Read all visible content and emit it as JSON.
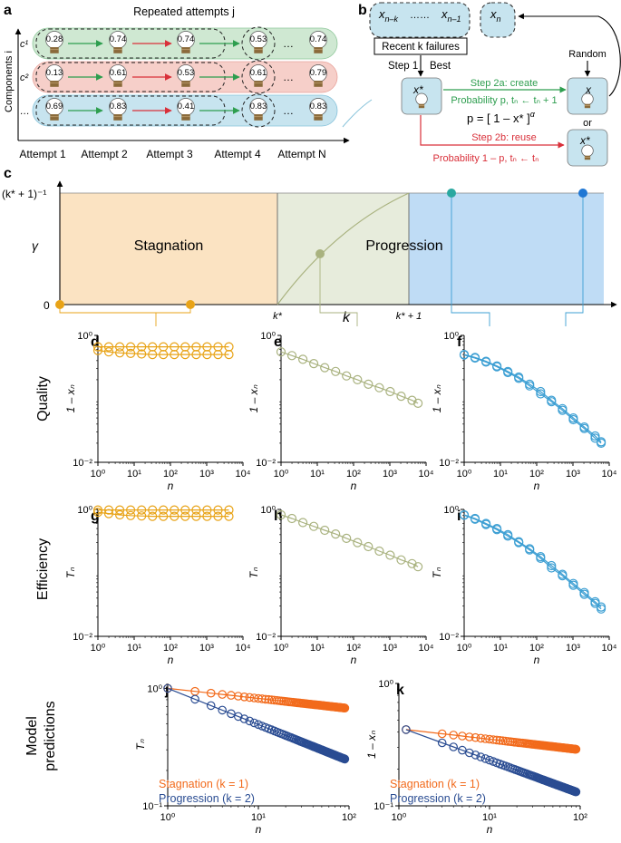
{
  "panel_a": {
    "letter": "a",
    "header": "Repeated attempts j",
    "y_axis": "Components i",
    "row_labels": [
      "c¹",
      "c²",
      "…"
    ],
    "row_colors": [
      "#cfe8d2",
      "#f6cfc9",
      "#c7e4ef"
    ],
    "row_edge_colors": [
      "#8ec79a",
      "#e8a29a",
      "#86c2da"
    ],
    "rows": [
      [
        "0.28",
        "0.74",
        "0.74",
        "0.53",
        "…",
        "0.74"
      ],
      [
        "0.13",
        "0.61",
        "0.53",
        "0.61",
        "…",
        "0.79"
      ],
      [
        "0.69",
        "0.83",
        "0.41",
        "0.83",
        "…",
        "0.83"
      ]
    ],
    "attempts": [
      "Attempt 1",
      "Attempt 2",
      "Attempt 3",
      "Attempt 4",
      "Attempt N"
    ]
  },
  "panel_b": {
    "letter": "b",
    "nodes": {
      "x_nk": "x",
      "x_nk_sub": "n–k",
      "dots": "……",
      "x_n1": "x",
      "x_n1_sub": "n–1",
      "x_n": "x",
      "x_n_sub": "n"
    },
    "recent_failures": "Recent k failures",
    "step1": "Step 1",
    "best": "Best",
    "xstar": "x*",
    "random": "Random",
    "x_new": "x",
    "or": "or",
    "step2a": "Step 2a: create",
    "prob_p": "Probability p, tₙ ← tₙ + 1",
    "formula": "p = [ 1 – x* ]",
    "formula_exp": "α",
    "step2b": "Step 2b: reuse",
    "prob_1mp": "Probability 1 – p, tₙ ← tₙ",
    "green": "#2e9e4f",
    "red": "#d9303a"
  },
  "panel_c": {
    "letter": "c",
    "ylabel": "γ",
    "ytick_top": "(k* + 1)⁻¹",
    "ytick_zero": "0",
    "xlabel": "k",
    "xtick_kstar": "k*",
    "xtick_kstar1": "k* + 1",
    "regions": [
      "Stagnation",
      "Progression"
    ],
    "colors": {
      "stagnation": "#fbe3c2",
      "middle": "#e7ecdc",
      "progression": "#bfdcf5"
    }
  },
  "row_labels": {
    "quality": "Quality",
    "efficiency": "Efficiency",
    "model": "Model\npredictions"
  },
  "series_colors": {
    "orange": "#e8a317",
    "olive": "#a9b27f",
    "blue": "#3d9fd3",
    "stag": "#f26a1b",
    "prog": "#2a4c92"
  },
  "chart_data": [
    {
      "id": "d",
      "type": "line",
      "ylabel": "1 – xₙ",
      "xlabel": "n",
      "xscale": "log",
      "yscale": "log",
      "xlim": [
        1,
        10000
      ],
      "ylim": [
        0.01,
        1
      ],
      "xticks": [
        "10⁰",
        "10¹",
        "10²",
        "10³",
        "10⁴"
      ],
      "yticks": [
        "10⁰",
        "10⁻²"
      ],
      "color": "orange",
      "series": [
        {
          "x": [
            1,
            2,
            4,
            8,
            16,
            32,
            64,
            128,
            256,
            512,
            1024,
            2048,
            4096
          ],
          "y": [
            0.66,
            0.66,
            0.66,
            0.66,
            0.66,
            0.66,
            0.66,
            0.66,
            0.66,
            0.66,
            0.66,
            0.66,
            0.66
          ]
        },
        {
          "x": [
            1,
            2,
            4,
            8,
            16,
            32,
            64,
            128,
            256,
            512,
            1024,
            2048,
            4096
          ],
          "y": [
            0.58,
            0.55,
            0.53,
            0.52,
            0.51,
            0.5,
            0.5,
            0.5,
            0.5,
            0.5,
            0.5,
            0.5,
            0.5
          ]
        }
      ]
    },
    {
      "id": "e",
      "type": "line",
      "ylabel": "1 – xₙ",
      "xlabel": "n",
      "xscale": "log",
      "yscale": "log",
      "xlim": [
        1,
        10000
      ],
      "ylim": [
        0.01,
        1
      ],
      "xticks": [
        "10⁰",
        "10¹",
        "10²",
        "10³",
        "10⁴"
      ],
      "yticks": [
        "10⁰",
        "10⁻²"
      ],
      "color": "olive",
      "series": [
        {
          "x": [
            1,
            2,
            4,
            8,
            16,
            32,
            64,
            128,
            256,
            512,
            1024,
            2048,
            4096,
            6000
          ],
          "y": [
            0.55,
            0.48,
            0.42,
            0.36,
            0.31,
            0.27,
            0.23,
            0.2,
            0.17,
            0.15,
            0.13,
            0.11,
            0.095,
            0.085
          ]
        }
      ]
    },
    {
      "id": "f",
      "type": "line",
      "ylabel": "1 – xₙ",
      "xlabel": "n",
      "xscale": "log",
      "yscale": "log",
      "xlim": [
        1,
        10000
      ],
      "ylim": [
        0.01,
        1
      ],
      "xticks": [
        "10⁰",
        "10¹",
        "10²",
        "10³",
        "10⁴"
      ],
      "yticks": [
        "10⁰",
        "10⁻²"
      ],
      "color": "blue",
      "series": [
        {
          "x": [
            1,
            2,
            4,
            8,
            16,
            32,
            64,
            128,
            256,
            512,
            1024,
            2048,
            4096,
            6000
          ],
          "y": [
            0.5,
            0.45,
            0.39,
            0.33,
            0.27,
            0.22,
            0.17,
            0.13,
            0.095,
            0.07,
            0.05,
            0.036,
            0.026,
            0.021
          ]
        },
        {
          "x": [
            1,
            2,
            4,
            8,
            16,
            32,
            64,
            128,
            256,
            512,
            1024,
            2048,
            4096,
            6000
          ],
          "y": [
            0.49,
            0.44,
            0.38,
            0.32,
            0.26,
            0.21,
            0.16,
            0.12,
            0.09,
            0.066,
            0.047,
            0.034,
            0.024,
            0.02
          ]
        }
      ]
    },
    {
      "id": "g",
      "type": "line",
      "ylabel": "Tₙ",
      "xlabel": "n",
      "xscale": "log",
      "yscale": "log",
      "xlim": [
        1,
        10000
      ],
      "ylim": [
        0.01,
        1
      ],
      "xticks": [
        "10⁰",
        "10¹",
        "10²",
        "10³",
        "10⁴"
      ],
      "yticks": [
        "10⁰",
        "10⁻²"
      ],
      "color": "orange",
      "series": [
        {
          "x": [
            1,
            2,
            4,
            8,
            16,
            32,
            64,
            128,
            256,
            512,
            1024,
            2048,
            4096
          ],
          "y": [
            0.98,
            0.98,
            0.98,
            0.98,
            0.98,
            0.98,
            0.98,
            0.98,
            0.98,
            0.98,
            0.98,
            0.98,
            0.98
          ]
        },
        {
          "x": [
            1,
            2,
            4,
            8,
            16,
            32,
            64,
            128,
            256,
            512,
            1024,
            2048,
            4096
          ],
          "y": [
            0.9,
            0.86,
            0.82,
            0.8,
            0.79,
            0.78,
            0.78,
            0.78,
            0.78,
            0.78,
            0.78,
            0.78,
            0.78
          ]
        }
      ]
    },
    {
      "id": "h",
      "type": "line",
      "ylabel": "Tₙ",
      "xlabel": "n",
      "xscale": "log",
      "yscale": "log",
      "xlim": [
        1,
        10000
      ],
      "ylim": [
        0.01,
        1
      ],
      "xticks": [
        "10⁰",
        "10¹",
        "10²",
        "10³",
        "10⁴"
      ],
      "yticks": [
        "10⁰",
        "10⁻²"
      ],
      "color": "olive",
      "series": [
        {
          "x": [
            1,
            2,
            4,
            8,
            16,
            32,
            64,
            128,
            256,
            512,
            1024,
            2048,
            4096,
            6000
          ],
          "y": [
            0.82,
            0.72,
            0.62,
            0.54,
            0.47,
            0.41,
            0.35,
            0.3,
            0.26,
            0.22,
            0.19,
            0.16,
            0.14,
            0.125
          ]
        }
      ]
    },
    {
      "id": "i",
      "type": "line",
      "ylabel": "Tₙ",
      "xlabel": "n",
      "xscale": "log",
      "yscale": "log",
      "xlim": [
        1,
        10000
      ],
      "ylim": [
        0.01,
        1
      ],
      "xticks": [
        "10⁰",
        "10¹",
        "10²",
        "10³",
        "10⁴"
      ],
      "yticks": [
        "10⁰",
        "10⁻²"
      ],
      "color": "blue",
      "series": [
        {
          "x": [
            1,
            2,
            4,
            8,
            16,
            32,
            64,
            128,
            256,
            512,
            1024,
            2048,
            4096,
            6000
          ],
          "y": [
            0.82,
            0.72,
            0.6,
            0.5,
            0.4,
            0.31,
            0.24,
            0.18,
            0.13,
            0.095,
            0.068,
            0.049,
            0.035,
            0.029
          ]
        },
        {
          "x": [
            1,
            2,
            4,
            8,
            16,
            32,
            64,
            128,
            256,
            512,
            1024,
            2048,
            4096,
            6000
          ],
          "y": [
            0.81,
            0.7,
            0.58,
            0.48,
            0.38,
            0.3,
            0.23,
            0.17,
            0.12,
            0.09,
            0.064,
            0.046,
            0.033,
            0.027
          ]
        }
      ]
    },
    {
      "id": "j",
      "type": "line",
      "ylabel": "Tₙ",
      "xlabel": "n",
      "xscale": "log",
      "yscale": "log",
      "xlim": [
        1,
        100
      ],
      "ylim": [
        0.1,
        1.1
      ],
      "xticks": [
        "10⁰",
        "10¹",
        "10²"
      ],
      "yticks": [
        "10⁰",
        "10⁻¹"
      ],
      "legend": [
        "Stagnation (k = 1)",
        "Progression (k = 2)"
      ],
      "series": [
        {
          "name": "Stagnation (k = 1)",
          "color": "stag",
          "x_range": [
            1,
            90
          ],
          "y": [
            1.0,
            0.68
          ]
        },
        {
          "name": "Progression (k = 2)",
          "color": "prog",
          "x_range": [
            1,
            90
          ],
          "y": [
            1.0,
            0.25
          ]
        }
      ]
    },
    {
      "id": "k",
      "type": "line",
      "ylabel": "1 – xₙ",
      "xlabel": "n",
      "xscale": "log",
      "yscale": "log",
      "xlim": [
        1,
        100
      ],
      "ylim": [
        0.1,
        1
      ],
      "xticks": [
        "10⁰",
        "10¹",
        "10²"
      ],
      "yticks": [
        "10⁰",
        "10⁻¹"
      ],
      "legend": [
        "Stagnation (k = 1)",
        "Progression (k = 2)"
      ],
      "series": [
        {
          "name": "Stagnation (k = 1)",
          "color": "stag",
          "x_range": [
            1.2,
            90
          ],
          "y": [
            0.42,
            0.29
          ]
        },
        {
          "name": "Progression (k = 2)",
          "color": "prog",
          "x_range": [
            1.2,
            90
          ],
          "y": [
            0.42,
            0.13
          ]
        }
      ]
    }
  ]
}
